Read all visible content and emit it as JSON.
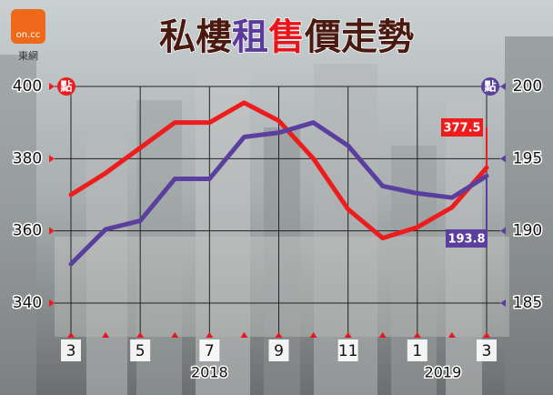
{
  "chart_data": {
    "type": "line",
    "title_segments": [
      {
        "text": "私樓",
        "color": "#4a1a10"
      },
      {
        "text": "租",
        "color": "#5a3a9a"
      },
      {
        "text": "售",
        "color": "#e8151b"
      },
      {
        "text": "價走勢",
        "color": "#4a1a10"
      }
    ],
    "logo": "on.cc",
    "logo_sub": "東網",
    "y_unit": "點",
    "y2_unit": "點",
    "categories": [
      "3",
      null,
      "5",
      null,
      "7",
      null,
      "9",
      null,
      "11",
      null,
      "1",
      null,
      "3"
    ],
    "annotations": [
      "2018",
      "2019"
    ],
    "ylim": [
      340,
      400
    ],
    "yticks": [
      340,
      360,
      380,
      400
    ],
    "y2lim": [
      185,
      200
    ],
    "y2ticks": [
      185,
      190,
      195,
      200
    ],
    "grid": true,
    "series": [
      {
        "color": "#ee1c1c",
        "values": [
          370,
          376,
          383,
          390,
          390,
          395.5,
          390.5,
          380,
          366,
          358,
          361,
          366.5,
          377.5
        ]
      },
      {
        "color": "#5b3f9e",
        "axis": "y2",
        "values": [
          187.7,
          190.1,
          190.7,
          193.6,
          193.6,
          196.5,
          196.8,
          197.5,
          195.9,
          193.1,
          192.6,
          192.3,
          193.8
        ]
      }
    ]
  }
}
